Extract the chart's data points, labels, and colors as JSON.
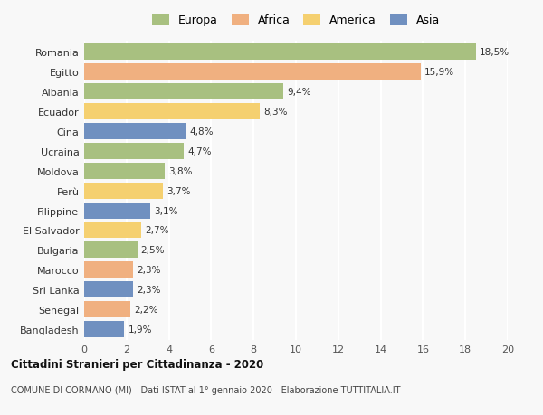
{
  "categories": [
    "Romania",
    "Egitto",
    "Albania",
    "Ecuador",
    "Cina",
    "Ucraina",
    "Moldova",
    "Perù",
    "Filippine",
    "El Salvador",
    "Bulgaria",
    "Marocco",
    "Sri Lanka",
    "Senegal",
    "Bangladesh"
  ],
  "values": [
    18.5,
    15.9,
    9.4,
    8.3,
    4.8,
    4.7,
    3.8,
    3.7,
    3.1,
    2.7,
    2.5,
    2.3,
    2.3,
    2.2,
    1.9
  ],
  "labels": [
    "18,5%",
    "15,9%",
    "9,4%",
    "8,3%",
    "4,8%",
    "4,7%",
    "3,8%",
    "3,7%",
    "3,1%",
    "2,7%",
    "2,5%",
    "2,3%",
    "2,3%",
    "2,2%",
    "1,9%"
  ],
  "colors": [
    "#a8c080",
    "#f0b080",
    "#a8c080",
    "#f5d070",
    "#7090c0",
    "#a8c080",
    "#a8c080",
    "#f5d070",
    "#7090c0",
    "#f5d070",
    "#a8c080",
    "#f0b080",
    "#7090c0",
    "#f0b080",
    "#7090c0"
  ],
  "legend": [
    {
      "label": "Europa",
      "color": "#a8c080"
    },
    {
      "label": "Africa",
      "color": "#f0b080"
    },
    {
      "label": "America",
      "color": "#f5d070"
    },
    {
      "label": "Asia",
      "color": "#7090c0"
    }
  ],
  "xlim": [
    0,
    20
  ],
  "xticks": [
    0,
    2,
    4,
    6,
    8,
    10,
    12,
    14,
    16,
    18,
    20
  ],
  "title": "Cittadini Stranieri per Cittadinanza - 2020",
  "subtitle": "COMUNE DI CORMANO (MI) - Dati ISTAT al 1° gennaio 2020 - Elaborazione TUTTITALIA.IT",
  "background_color": "#f8f8f8",
  "grid_color": "#ffffff",
  "bar_height": 0.82
}
